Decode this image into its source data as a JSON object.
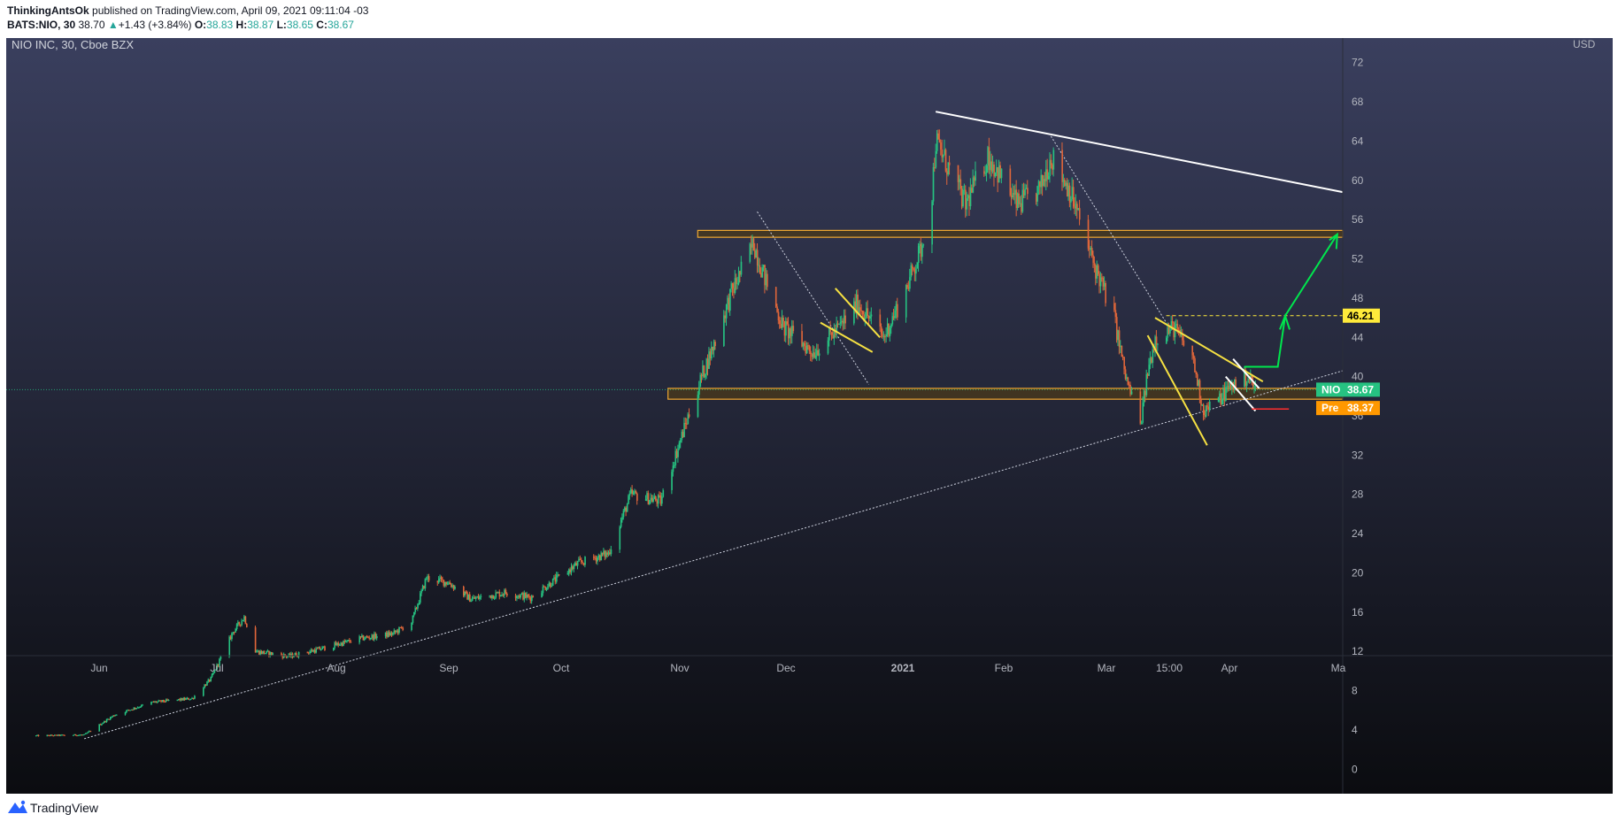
{
  "header": {
    "author": "ThinkingAntsOk",
    "published": "published on TradingView.com, April 09, 2021 09:11:04 -03",
    "symbol": "BATS:NIO, 30",
    "last": "38.70",
    "change_arrow": "▲",
    "change": "+1.43 (+3.84%)",
    "o_label": "O:",
    "o_value": "38.83",
    "h_label": "H:",
    "h_value": "38.87",
    "l_label": "L:",
    "l_value": "38.65",
    "c_label": "C:",
    "c_value": "38.67"
  },
  "footer": {
    "brand": "TradingView",
    "logo_icon": "tradingview-logo-icon"
  },
  "colors": {
    "background_top": "#3a3f5e",
    "background_bottom": "#0b0c10",
    "up": "#26c281",
    "down": "#e0663a",
    "zone_fill": "#4a3a1a",
    "zone_border": "#f0a830",
    "wedge": "#f5e042",
    "target_arrow": "#00e64d",
    "nio_badge": "#26c281",
    "pre_badge": "#ff9800",
    "level_badge": "#ffeb3b"
  },
  "chart_data": {
    "type": "candlestick",
    "title": "NIO INC, 30, Cboe BZX",
    "currency": "USD",
    "x_ticks": [
      "Jun",
      "Jul",
      "Aug",
      "Sep",
      "Oct",
      "Nov",
      "Dec",
      "2021",
      "Feb",
      "Mar",
      "15:00",
      "Apr",
      "Ma"
    ],
    "y_ticks": [
      0,
      4,
      8,
      12,
      16,
      20,
      24,
      28,
      32,
      36,
      40,
      44,
      48,
      52,
      56,
      60,
      64,
      68,
      72
    ],
    "ylim": [
      -2.5,
      74.5
    ],
    "price_path": [
      [
        "2020-05-15",
        3.4
      ],
      [
        "2020-05-28",
        3.5
      ],
      [
        "2020-06-05",
        5.5
      ],
      [
        "2020-06-15",
        6.8
      ],
      [
        "2020-06-26",
        7.2
      ],
      [
        "2020-07-01",
        9.2
      ],
      [
        "2020-07-07",
        14.0
      ],
      [
        "2020-07-10",
        15.5
      ],
      [
        "2020-07-13",
        12.0
      ],
      [
        "2020-07-22",
        11.5
      ],
      [
        "2020-07-31",
        12.3
      ],
      [
        "2020-08-10",
        13.3
      ],
      [
        "2020-08-19",
        13.8
      ],
      [
        "2020-08-24",
        15.0
      ],
      [
        "2020-08-28",
        19.5
      ],
      [
        "2020-09-03",
        19.0
      ],
      [
        "2020-09-09",
        17.3
      ],
      [
        "2020-09-18",
        18.0
      ],
      [
        "2020-09-25",
        17.5
      ],
      [
        "2020-10-02",
        19.4
      ],
      [
        "2020-10-08",
        21.0
      ],
      [
        "2020-10-16",
        22.0
      ],
      [
        "2020-10-22",
        28.0
      ],
      [
        "2020-10-30",
        27.3
      ],
      [
        "2020-11-06",
        35.5
      ],
      [
        "2020-11-10",
        40.0
      ],
      [
        "2020-11-13",
        43.0
      ],
      [
        "2020-11-18",
        48.5
      ],
      [
        "2020-11-24",
        53.6
      ],
      [
        "2020-11-27",
        50.0
      ],
      [
        "2020-12-02",
        45.0
      ],
      [
        "2020-12-10",
        42.5
      ],
      [
        "2020-12-17",
        45.0
      ],
      [
        "2020-12-22",
        47.5
      ],
      [
        "2020-12-29",
        44.0
      ],
      [
        "2021-01-04",
        49.0
      ],
      [
        "2021-01-08",
        53.0
      ],
      [
        "2021-01-11",
        59.0
      ],
      [
        "2021-01-12",
        64.0
      ],
      [
        "2021-01-20",
        57.5
      ],
      [
        "2021-01-26",
        62.5
      ],
      [
        "2021-02-03",
        57.5
      ],
      [
        "2021-02-09",
        59.0
      ],
      [
        "2021-02-12",
        62.5
      ],
      [
        "2021-02-17",
        59.0
      ],
      [
        "2021-02-23",
        52.0
      ],
      [
        "2021-03-01",
        46.0
      ],
      [
        "2021-03-04",
        40.0
      ],
      [
        "2021-03-08",
        35.0
      ],
      [
        "2021-03-10",
        40.5
      ],
      [
        "2021-03-12",
        44.0
      ],
      [
        "2021-03-17",
        45.0
      ],
      [
        "2021-03-22",
        42.0
      ],
      [
        "2021-03-25",
        36.5
      ],
      [
        "2021-03-29",
        37.5
      ],
      [
        "2021-04-01",
        39.0
      ],
      [
        "2021-04-06",
        40.0
      ],
      [
        "2021-04-08",
        38.7
      ]
    ],
    "annotations": {
      "resistance_zone": {
        "range": [
          54.2,
          54.9
        ],
        "from": "2020-11-09"
      },
      "support_zone": {
        "range": [
          37.7,
          38.8
        ],
        "from": "2020-11-01"
      },
      "target_level": 46.21,
      "nio_price": "38.67",
      "pre_price": "38.37",
      "nio_label": "NIO",
      "pre_label": "Pre",
      "level_label": "46.21"
    },
    "grid": false,
    "legend": "none"
  }
}
